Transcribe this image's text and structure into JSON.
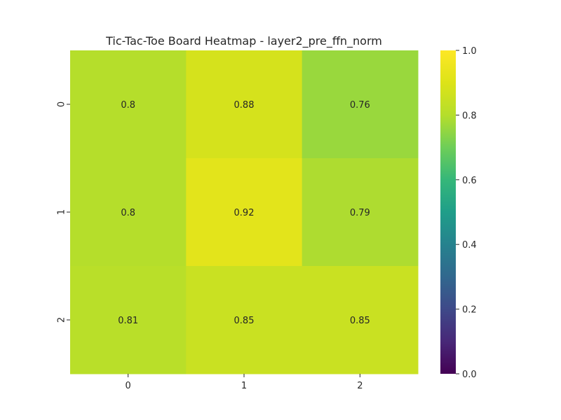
{
  "chart_data": {
    "type": "heatmap",
    "title": "Tic-Tac-Toe Board Heatmap - layer2_pre_ffn_norm",
    "x_categories": [
      "0",
      "1",
      "2"
    ],
    "y_categories": [
      "0",
      "1",
      "2"
    ],
    "values": [
      [
        0.8,
        0.88,
        0.76
      ],
      [
        0.8,
        0.92,
        0.79
      ],
      [
        0.81,
        0.85,
        0.85
      ]
    ],
    "annotations": [
      [
        "0.8",
        "0.88",
        "0.76"
      ],
      [
        "0.8",
        "0.92",
        "0.79"
      ],
      [
        "0.81",
        "0.85",
        "0.85"
      ]
    ],
    "colormap": "viridis",
    "vmin": 0.0,
    "vmax": 1.0,
    "colorbar": {
      "ticks": [
        0.0,
        0.2,
        0.4,
        0.6,
        0.8,
        1.0
      ],
      "tick_labels": [
        "0.0",
        "0.2",
        "0.4",
        "0.6",
        "0.8",
        "1.0"
      ]
    },
    "xlabel": "",
    "ylabel": ""
  }
}
